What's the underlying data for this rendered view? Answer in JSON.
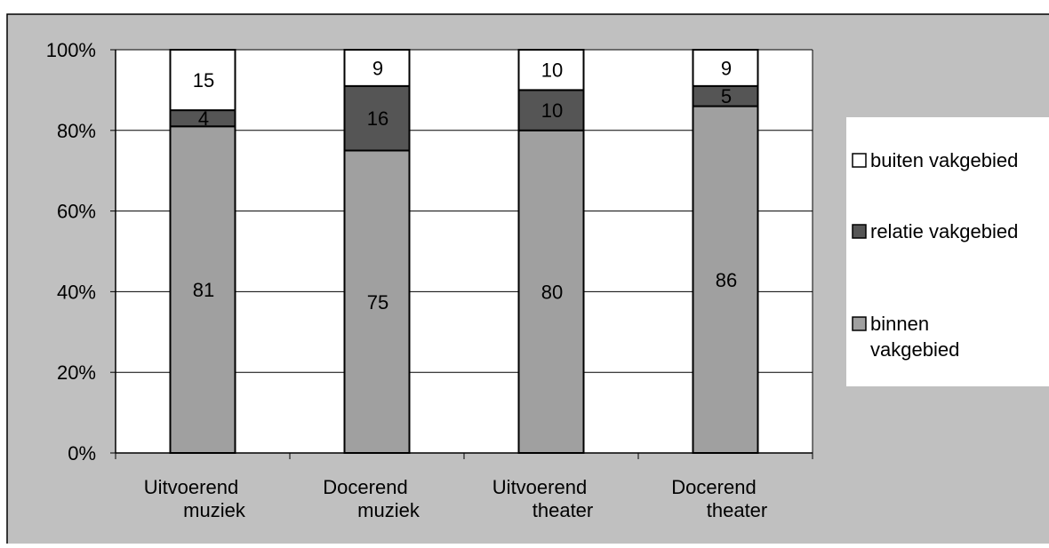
{
  "chart_data": {
    "type": "bar",
    "stacked": true,
    "normalized": true,
    "categories": [
      [
        "Uitvoerend",
        "muziek"
      ],
      [
        "Docerend",
        "muziek"
      ],
      [
        "Uitvoerend",
        "theater"
      ],
      [
        "Docerend",
        "theater"
      ]
    ],
    "series": [
      {
        "name": "binnen vakgebied",
        "legend_lines": [
          "binnen",
          "vakgebied"
        ],
        "color": "#a0a0a0",
        "values": [
          81,
          75,
          80,
          86
        ]
      },
      {
        "name": "relatie vakgebied",
        "legend_lines": [
          "relatie vakgebied"
        ],
        "color": "#555555",
        "values": [
          4,
          16,
          10,
          5
        ]
      },
      {
        "name": "buiten vakgebied",
        "legend_lines": [
          "buiten vakgebied"
        ],
        "color": "#ffffff",
        "values": [
          15,
          9,
          10,
          9
        ]
      }
    ],
    "ylim": [
      0,
      100
    ],
    "yticks": [
      "0%",
      "20%",
      "40%",
      "60%",
      "80%",
      "100%"
    ],
    "grid": true,
    "legend_position": "right",
    "colors": {
      "chart_area": "#c0c0c0",
      "plot_area": "#ffffff",
      "gridline": "#000000"
    }
  }
}
